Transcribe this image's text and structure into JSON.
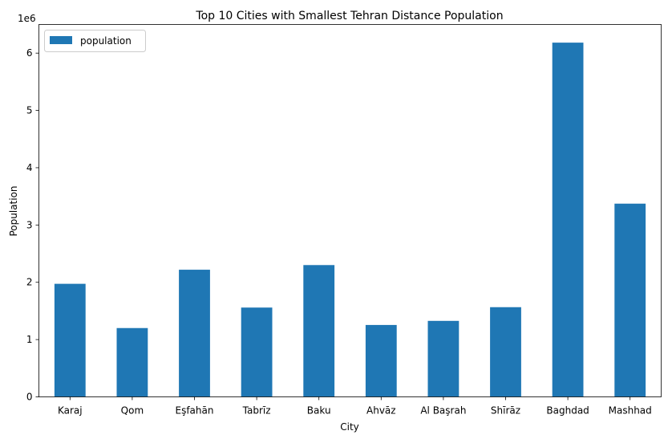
{
  "chart_data": {
    "type": "bar",
    "title": "Top 10 Cities with Smallest Tehran Distance Population",
    "xlabel": "City",
    "ylabel": "Population",
    "scale_label": "1e6",
    "categories": [
      "Karaj",
      "Qom",
      "Eşfahān",
      "Tabrīz",
      "Baku",
      "Ahvāz",
      "Al Başrah",
      "Shīrāz",
      "Baghdad",
      "Mashhad"
    ],
    "series": [
      {
        "name": "population",
        "color": "#1f77b4",
        "values": [
          1973470,
          1201158,
          2219343,
          1558693,
          2300500,
          1255000,
          1326564,
          1565572,
          6183000,
          3372660
        ]
      }
    ],
    "ylim": [
      0,
      6500000
    ],
    "yticks": [
      0,
      1000000,
      2000000,
      3000000,
      4000000,
      5000000,
      6000000
    ],
    "ytick_labels": [
      "0",
      "1",
      "2",
      "3",
      "4",
      "5",
      "6"
    ],
    "grid": false,
    "legend": "top-left"
  }
}
